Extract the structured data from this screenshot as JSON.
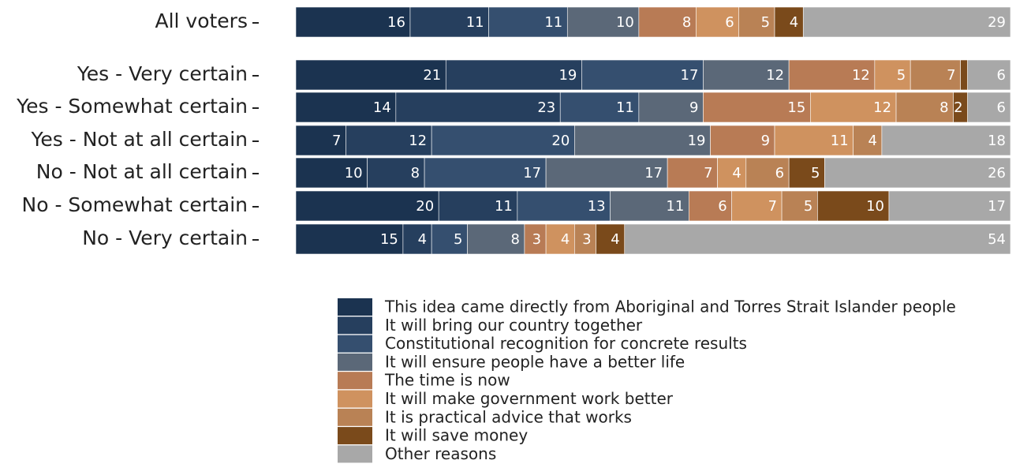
{
  "chart_data": {
    "type": "stacked_bar_horizontal",
    "categories": [
      "All voters",
      "Yes - Very certain",
      "Yes - Somewhat certain",
      "Yes - Not at all certain",
      "No - Not at all certain",
      "No - Somewhat certain",
      "No - Very certain"
    ],
    "xlim": [
      0,
      100
    ],
    "series": [
      {
        "name": "This idea came directly from Aboriginal and Torres Strait Islander people",
        "color": "#1b3350",
        "values": [
          16,
          21,
          14,
          7,
          10,
          20,
          15
        ]
      },
      {
        "name": "It will bring our country together",
        "color": "#263f5e",
        "values": [
          11,
          19,
          23,
          12,
          8,
          11,
          4
        ]
      },
      {
        "name": "Constitutional recognition for concrete results",
        "color": "#354f6f",
        "values": [
          11,
          17,
          11,
          20,
          17,
          13,
          5
        ]
      },
      {
        "name": "It will ensure people have a better life",
        "color": "#5b6878",
        "values": [
          10,
          12,
          9,
          19,
          17,
          11,
          8
        ]
      },
      {
        "name": "The time is now",
        "color": "#b87b55",
        "values": [
          8,
          12,
          15,
          9,
          7,
          6,
          3
        ]
      },
      {
        "name": "It will make government work better",
        "color": "#cf925f",
        "values": [
          6,
          5,
          12,
          11,
          4,
          7,
          4
        ]
      },
      {
        "name": "It is practical advice that works",
        "color": "#b98255",
        "values": [
          5,
          7,
          8,
          4,
          6,
          5,
          3
        ]
      },
      {
        "name": "It will save money",
        "color": "#7a4a1b",
        "values": [
          4,
          1,
          2,
          0,
          5,
          10,
          4
        ],
        "value_labels": [
          "4",
          null,
          "2",
          null,
          "5",
          "10",
          "4"
        ]
      },
      {
        "name": "Other reasons",
        "color": "#a8a8a8",
        "values": [
          29,
          6,
          6,
          18,
          26,
          17,
          54
        ]
      }
    ]
  }
}
